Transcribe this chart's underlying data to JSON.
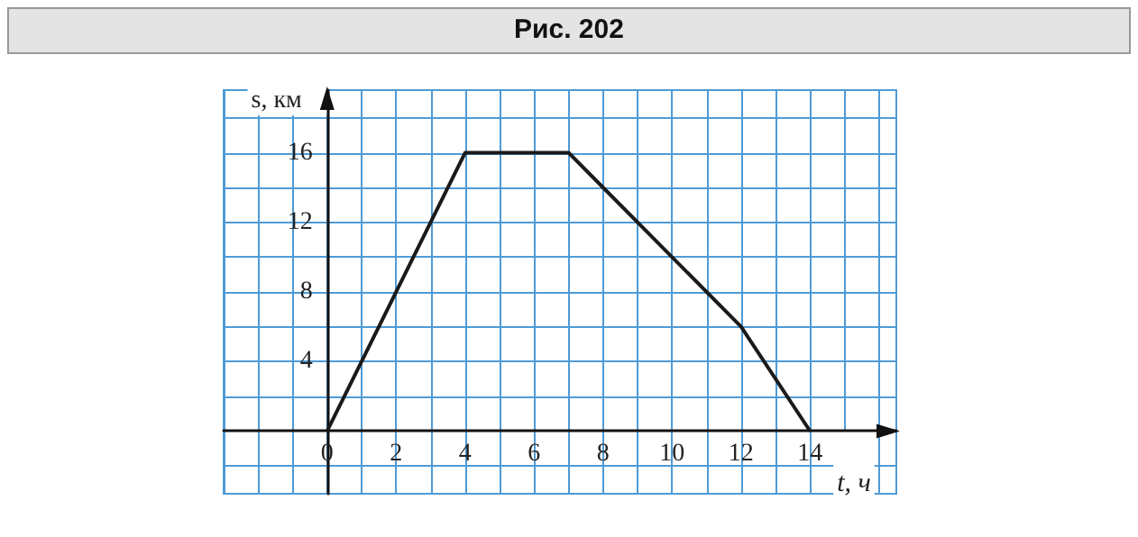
{
  "chart_data": {
    "type": "line",
    "title": "Рис. 202",
    "xlabel": "t, ч",
    "ylabel": "s, км",
    "x": [
      0,
      4,
      7,
      12,
      14
    ],
    "series": [
      {
        "color": "#1a1a1a",
        "values": [
          0,
          16,
          16,
          6,
          0
        ]
      }
    ],
    "xlim": [
      -3,
      16.5
    ],
    "ylim": [
      -3.6,
      19.6
    ],
    "xticks": [
      {
        "value": -3,
        "label": null
      },
      {
        "value": -2,
        "label": null
      },
      {
        "value": -1,
        "label": null
      },
      0,
      {
        "value": 1,
        "label": null
      },
      2,
      {
        "value": 3,
        "label": null
      },
      4,
      {
        "value": 5,
        "label": null
      },
      6,
      {
        "value": 7,
        "label": null
      },
      8,
      {
        "value": 9,
        "label": null
      },
      10,
      {
        "value": 11,
        "label": null
      },
      12,
      {
        "value": 13,
        "label": null
      },
      14,
      {
        "value": 15,
        "label": null
      },
      {
        "value": 16,
        "label": null
      }
    ],
    "yticks": [
      {
        "value": -2,
        "label": null
      },
      {
        "value": 2,
        "label": null
      },
      4,
      {
        "value": 6,
        "label": null
      },
      8,
      {
        "value": 10,
        "label": null
      },
      12,
      {
        "value": 14,
        "label": null
      },
      16,
      {
        "value": 18,
        "label": null
      }
    ],
    "grid": true,
    "marker": "none",
    "line_style": "solid"
  }
}
